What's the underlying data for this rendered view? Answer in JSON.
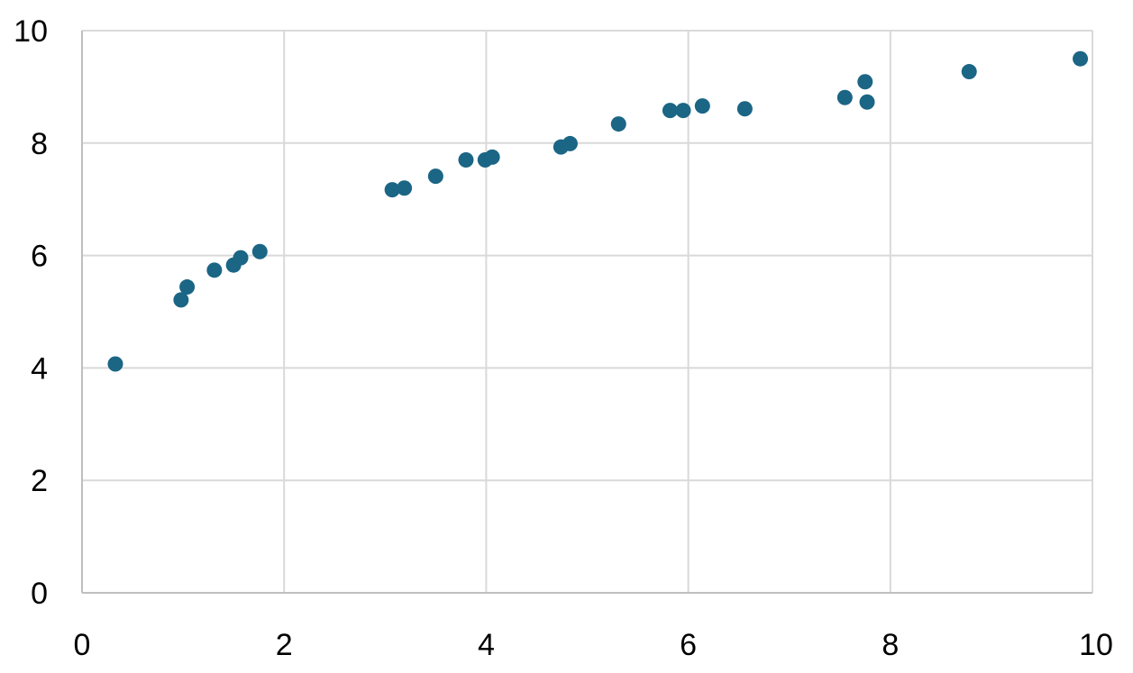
{
  "colors": {
    "point": "#1b6585",
    "grid": "#d9d9d9",
    "axis": "#bfbfbf",
    "text": "#000000",
    "background": "#ffffff"
  },
  "chart_data": {
    "type": "scatter",
    "title": "",
    "xlabel": "",
    "ylabel": "",
    "xlim": [
      0,
      10
    ],
    "ylim": [
      0,
      10
    ],
    "x_ticks": [
      "0",
      "2",
      "4",
      "6",
      "8",
      "10"
    ],
    "y_ticks": [
      "0",
      "2",
      "4",
      "6",
      "8",
      "10"
    ],
    "grid": true,
    "legend": "none",
    "series": [
      {
        "points": [
          {
            "x": 0.33,
            "y": 4.07
          },
          {
            "x": 0.98,
            "y": 5.21
          },
          {
            "x": 1.04,
            "y": 5.44
          },
          {
            "x": 1.31,
            "y": 5.74
          },
          {
            "x": 1.5,
            "y": 5.83
          },
          {
            "x": 1.57,
            "y": 5.96
          },
          {
            "x": 1.76,
            "y": 6.07
          },
          {
            "x": 3.07,
            "y": 7.17
          },
          {
            "x": 3.19,
            "y": 7.2
          },
          {
            "x": 3.5,
            "y": 7.41
          },
          {
            "x": 3.8,
            "y": 7.7
          },
          {
            "x": 3.99,
            "y": 7.7
          },
          {
            "x": 4.06,
            "y": 7.75
          },
          {
            "x": 4.74,
            "y": 7.93
          },
          {
            "x": 4.83,
            "y": 7.99
          },
          {
            "x": 5.31,
            "y": 8.34
          },
          {
            "x": 5.82,
            "y": 8.58
          },
          {
            "x": 5.95,
            "y": 8.58
          },
          {
            "x": 6.14,
            "y": 8.66
          },
          {
            "x": 6.56,
            "y": 8.61
          },
          {
            "x": 7.55,
            "y": 8.81
          },
          {
            "x": 7.75,
            "y": 9.09
          },
          {
            "x": 7.77,
            "y": 8.73
          },
          {
            "x": 8.78,
            "y": 9.27
          },
          {
            "x": 9.88,
            "y": 9.5
          }
        ]
      }
    ]
  }
}
